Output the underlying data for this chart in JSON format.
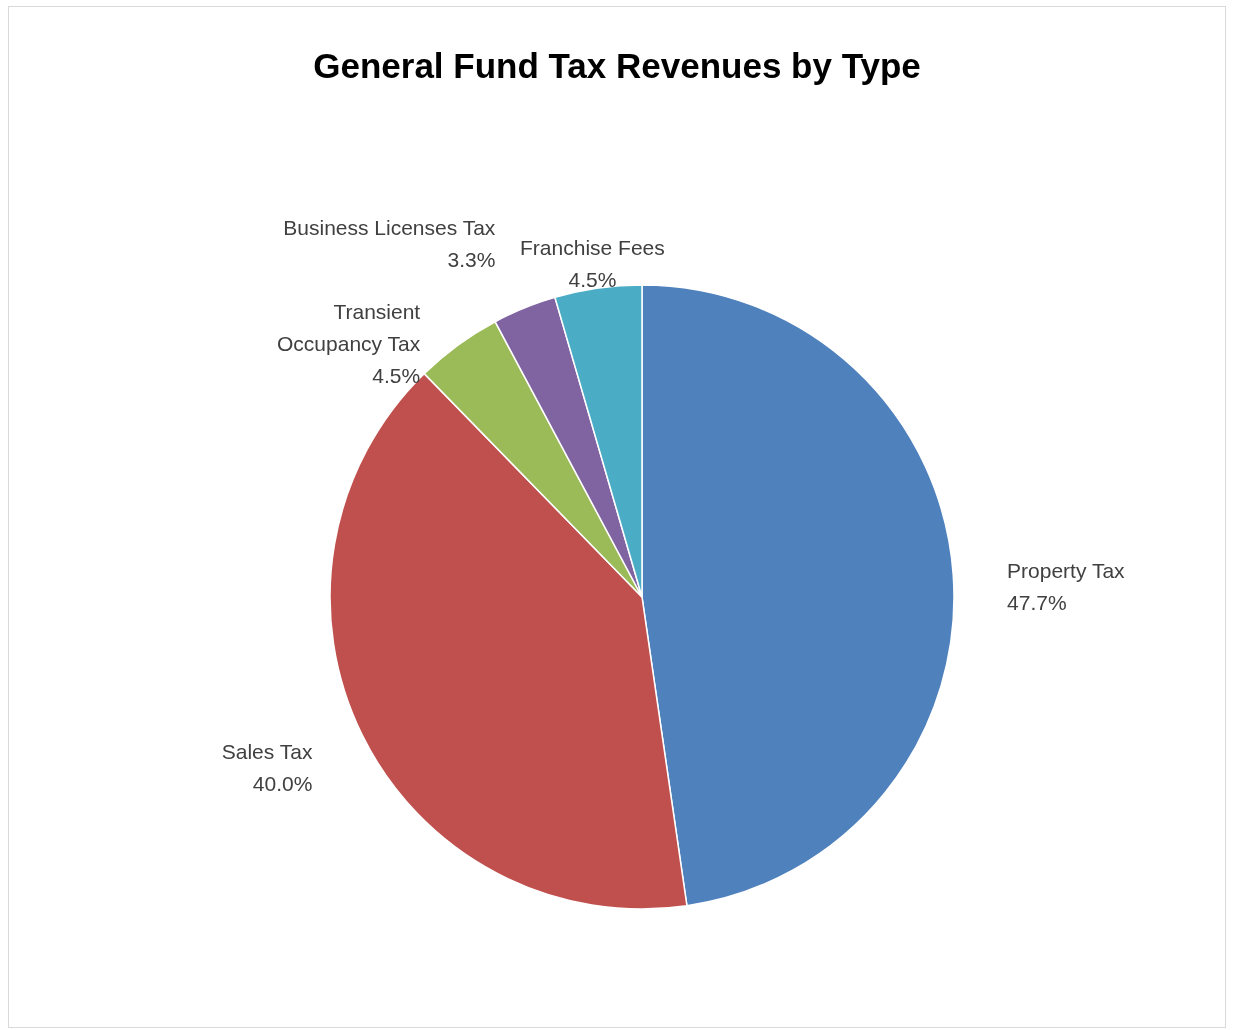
{
  "chart_data": {
    "type": "pie",
    "title": "General Fund Tax Revenues by Type",
    "categories": [
      "Property Tax",
      "Sales Tax",
      "Transient Occupancy Tax",
      "Business Licenses Tax",
      "Franchise Fees"
    ],
    "values": [
      47.7,
      40.0,
      4.5,
      3.3,
      4.5
    ],
    "colors": [
      "#4f81bd",
      "#c0504d",
      "#9bbb59",
      "#8064a2",
      "#4bacc6"
    ],
    "value_labels": [
      "47.7%",
      "40.0%",
      "4.5%",
      "3.3%",
      "4.5%"
    ],
    "legend": false
  }
}
